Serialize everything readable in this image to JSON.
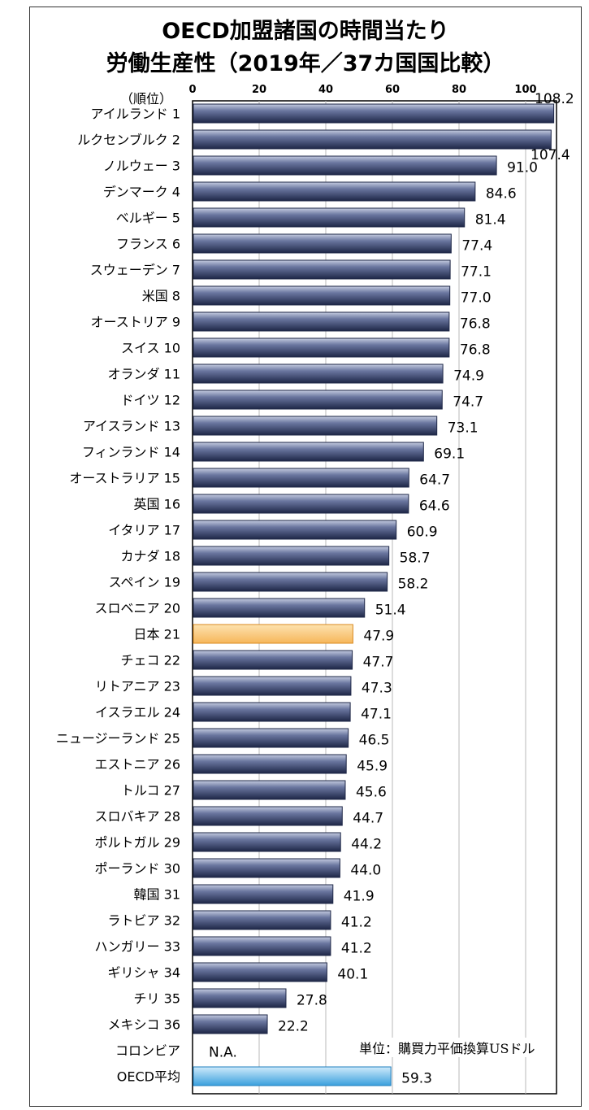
{
  "title_line1": "OECD加盟諸国の時間当たり",
  "title_line2": "労働生産性（2019年／37カ国国比較）",
  "rank_header": "（順位）",
  "unit_note": "単位：購買力平価換算USドル",
  "colors": {
    "bar": "#3d4a72",
    "bar_highlight": "#f6b65a",
    "bar_average": "#5bb2e6",
    "grid": "#b8b8b8"
  },
  "chart_data": {
    "type": "bar",
    "orientation": "horizontal",
    "xlim": [
      0,
      110
    ],
    "x_ticks": [
      0,
      20,
      40,
      60,
      80,
      100
    ],
    "grid": true,
    "categories": [
      "アイルランド 1",
      "ルクセンブルク 2",
      "ノルウェー 3",
      "デンマーク 4",
      "ベルギー 5",
      "フランス 6",
      "スウェーデン 7",
      "米国 8",
      "オーストリア 9",
      "スイス 10",
      "オランダ 11",
      "ドイツ 12",
      "アイスランド 13",
      "フィンランド 14",
      "オーストラリア 15",
      "英国 16",
      "イタリア 17",
      "カナダ 18",
      "スペイン 19",
      "スロベニア 20",
      "日本 21",
      "チェコ 22",
      "リトアニア 23",
      "イスラエル 24",
      "ニュージーランド 25",
      "エストニア 26",
      "トルコ 27",
      "スロバキア 28",
      "ポルトガル 29",
      "ポーランド 30",
      "韓国 31",
      "ラトビア 32",
      "ハンガリー 33",
      "ギリシャ 34",
      "チリ 35",
      "メキシコ 36",
      "コロンビア",
      "OECD平均"
    ],
    "values": [
      108.2,
      107.4,
      91.0,
      84.6,
      81.4,
      77.4,
      77.1,
      77.0,
      76.8,
      76.8,
      74.9,
      74.7,
      73.1,
      69.1,
      64.7,
      64.6,
      60.9,
      58.7,
      58.2,
      51.4,
      47.9,
      47.7,
      47.3,
      47.1,
      46.5,
      45.9,
      45.6,
      44.7,
      44.2,
      44.0,
      41.9,
      41.2,
      41.2,
      40.1,
      27.8,
      22.2,
      null,
      59.3
    ],
    "value_labels": [
      "108.2",
      "107.4",
      "91.0",
      "84.6",
      "81.4",
      "77.4",
      "77.1",
      "77.0",
      "76.8",
      "76.8",
      "74.9",
      "74.7",
      "73.1",
      "69.1",
      "64.7",
      "64.6",
      "60.9",
      "58.7",
      "58.2",
      "51.4",
      "47.9",
      "47.7",
      "47.3",
      "47.1",
      "46.5",
      "45.9",
      "45.6",
      "44.7",
      "44.2",
      "44.0",
      "41.9",
      "41.2",
      "41.2",
      "40.1",
      "27.8",
      "22.2",
      "N.A.",
      "59.3"
    ],
    "highlight": [
      "日本 21"
    ],
    "average": [
      "OECD平均"
    ]
  }
}
